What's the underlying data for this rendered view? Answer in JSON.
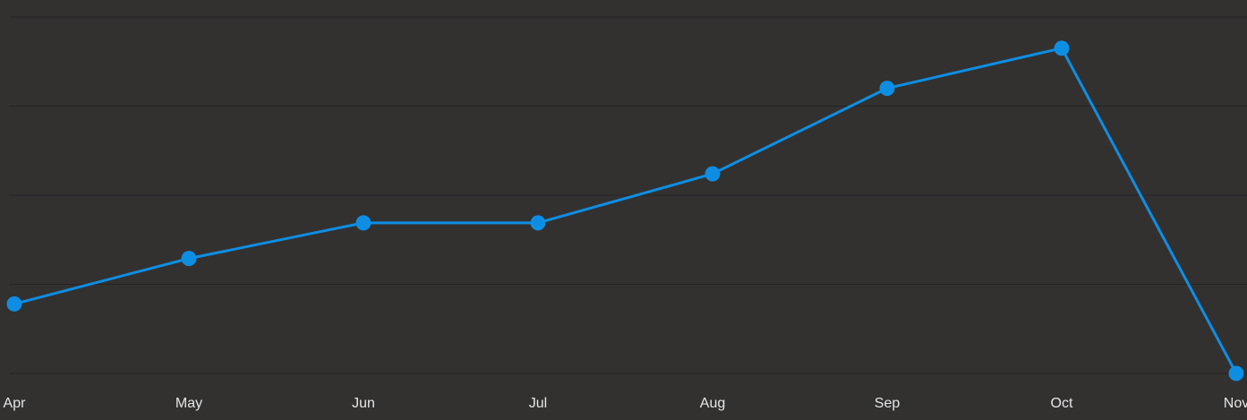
{
  "chart_data": {
    "type": "line",
    "categories": [
      "Apr",
      "May",
      "Jun",
      "Jul",
      "Aug",
      "Sep",
      "Oct",
      "Nov"
    ],
    "series": [
      {
        "color": "#0e8ee3",
        "values": [
          0.78,
          1.29,
          1.69,
          1.69,
          2.24,
          3.2,
          3.65,
          0
        ]
      }
    ],
    "ylim": [
      0,
      4
    ],
    "ygrid": [
      0,
      1,
      2,
      3,
      4
    ],
    "grid": true
  }
}
